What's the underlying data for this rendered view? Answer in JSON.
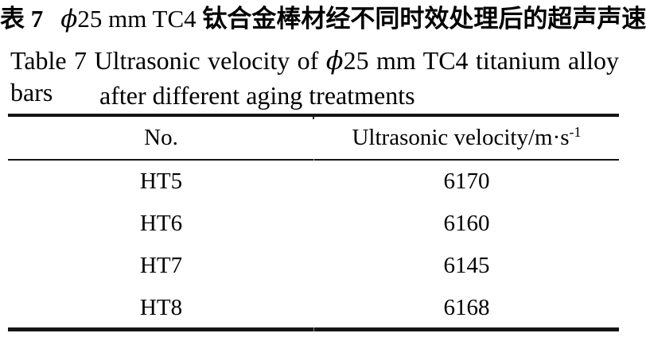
{
  "caption": {
    "zh_label": "表 7",
    "zh_phi": "ϕ",
    "zh_mid": "25 mm TC4",
    "zh_tail": "钛合金棒材经不同时效处理后的超声声速",
    "en_part1": "Table 7 Ultrasonic velocity of",
    "en_phi": "ϕ",
    "en_part2": "25 mm TC4 titanium alloy bars",
    "en_line2": "after different aging treatments"
  },
  "table": {
    "header": {
      "no": "No.",
      "velocity_main": "Ultrasonic velocity/m·s",
      "velocity_sup": "-1"
    },
    "rows": [
      {
        "no": "HT5",
        "velocity": "6170"
      },
      {
        "no": "HT6",
        "velocity": "6160"
      },
      {
        "no": "HT7",
        "velocity": "6145"
      },
      {
        "no": "HT8",
        "velocity": "6168"
      }
    ]
  },
  "colors": {
    "text": "#000000",
    "rule": "#151515",
    "background": "#ffffff"
  },
  "chart_data": {
    "type": "table",
    "title_zh": "表 7 ϕ25 mm TC4 钛合金棒材经不同时效处理后的超声声速",
    "title_en": "Table 7 Ultrasonic velocity of ϕ25 mm TC4 titanium alloy bars after different aging treatments",
    "columns": [
      "No.",
      "Ultrasonic velocity/m·s⁻¹"
    ],
    "rows": [
      [
        "HT5",
        6170
      ],
      [
        "HT6",
        6160
      ],
      [
        "HT7",
        6145
      ],
      [
        "HT8",
        6168
      ]
    ]
  }
}
